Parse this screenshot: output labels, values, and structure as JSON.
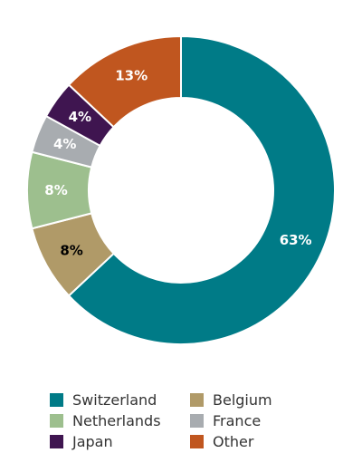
{
  "chart_data": {
    "type": "pie",
    "donut": true,
    "categories": [
      "Switzerland",
      "Belgium",
      "Netherlands",
      "France",
      "Japan",
      "Other"
    ],
    "values": [
      63,
      8,
      8,
      4,
      4,
      13
    ],
    "value_labels": [
      "63%",
      "8%",
      "8%",
      "4%",
      "4%",
      "13%"
    ],
    "colors": [
      "#007b87",
      "#b09a68",
      "#9dbf8e",
      "#a8acb0",
      "#3f1550",
      "#c0561f"
    ],
    "label_colors": [
      "#ffffff",
      "#000000",
      "#ffffff",
      "#ffffff",
      "#ffffff",
      "#ffffff"
    ],
    "legend_placement": "bottom",
    "legend_order": [
      0,
      1,
      2,
      3,
      4,
      5
    ],
    "title": "",
    "xlabel": "",
    "ylabel": ""
  }
}
